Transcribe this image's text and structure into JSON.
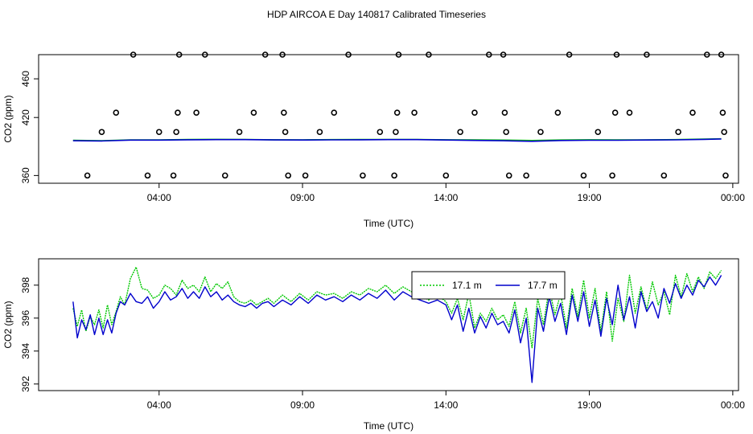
{
  "title": "HDP AIRCOA E  Day 140817  Calibrated Timeseries",
  "colors": {
    "green": "#00c800",
    "blue": "#0000cc",
    "axis": "#000000",
    "marker": "#000000"
  },
  "chart_data": [
    {
      "type": "scatter",
      "title": "",
      "xlabel": "Time (UTC)",
      "ylabel": "CO2 (ppm)",
      "x_unit": "hours UTC since 00:00 on day 140817",
      "xlim": [
        -0.2,
        24.2
      ],
      "ylim": [
        352,
        485
      ],
      "xticks": [
        4,
        9,
        14,
        19,
        24
      ],
      "xtick_labels": [
        "04:00",
        "09:00",
        "14:00",
        "19:00",
        "00:00"
      ],
      "yticks": [
        360,
        420,
        460
      ],
      "ytick_labels": [
        "360",
        "420",
        "460"
      ],
      "grid": false,
      "marker_series": {
        "name": "",
        "marker": "open-circle",
        "points": [
          [
            1.5,
            360
          ],
          [
            2.0,
            405
          ],
          [
            2.5,
            425
          ],
          [
            3.1,
            485
          ],
          [
            3.6,
            360
          ],
          [
            4.0,
            405
          ],
          [
            4.5,
            360
          ],
          [
            4.6,
            405
          ],
          [
            4.65,
            425
          ],
          [
            4.7,
            485
          ],
          [
            5.3,
            425
          ],
          [
            5.6,
            485
          ],
          [
            6.3,
            360
          ],
          [
            6.8,
            405
          ],
          [
            7.3,
            425
          ],
          [
            7.7,
            485
          ],
          [
            8.3,
            485
          ],
          [
            8.35,
            425
          ],
          [
            8.4,
            405
          ],
          [
            8.5,
            360
          ],
          [
            9.1,
            360
          ],
          [
            9.6,
            405
          ],
          [
            10.1,
            425
          ],
          [
            10.6,
            485
          ],
          [
            11.1,
            360
          ],
          [
            11.7,
            405
          ],
          [
            12.2,
            360
          ],
          [
            12.25,
            405
          ],
          [
            12.3,
            425
          ],
          [
            12.35,
            485
          ],
          [
            12.9,
            425
          ],
          [
            13.4,
            485
          ],
          [
            14.0,
            360
          ],
          [
            14.5,
            405
          ],
          [
            15.0,
            425
          ],
          [
            15.5,
            485
          ],
          [
            16.0,
            485
          ],
          [
            16.05,
            425
          ],
          [
            16.1,
            405
          ],
          [
            16.2,
            360
          ],
          [
            16.8,
            360
          ],
          [
            17.3,
            405
          ],
          [
            17.9,
            425
          ],
          [
            18.3,
            485
          ],
          [
            18.8,
            360
          ],
          [
            19.3,
            405
          ],
          [
            19.8,
            360
          ],
          [
            19.9,
            425
          ],
          [
            19.95,
            485
          ],
          [
            20.4,
            425
          ],
          [
            21.0,
            485
          ],
          [
            21.6,
            360
          ],
          [
            22.1,
            405
          ],
          [
            22.6,
            425
          ],
          [
            23.1,
            485
          ],
          [
            23.6,
            485
          ],
          [
            23.65,
            425
          ],
          [
            23.7,
            405
          ],
          [
            23.75,
            360
          ]
        ]
      },
      "series": [
        {
          "name": "17.1 m",
          "color": "#00c800",
          "x": [
            1,
            2,
            3,
            4,
            5,
            6,
            7,
            8,
            9,
            10,
            11,
            12,
            13,
            14,
            15,
            16,
            17,
            18,
            19,
            20,
            21,
            22,
            23,
            23.6
          ],
          "values": [
            396.4,
            396,
            396.9,
            396.8,
            397.2,
            397.4,
            397.3,
            397,
            396.9,
            397.1,
            397.2,
            397.3,
            397.3,
            397,
            396.8,
            396.6,
            396.2,
            396.7,
            397,
            396.8,
            396.9,
            397.1,
            397.6,
            398
          ]
        },
        {
          "name": "17.7 m",
          "color": "#0000cc",
          "x": [
            1,
            2,
            3,
            4,
            5,
            6,
            7,
            8,
            9,
            10,
            11,
            12,
            13,
            14,
            15,
            16,
            17,
            18,
            19,
            20,
            21,
            22,
            23,
            23.6
          ],
          "values": [
            396,
            395.7,
            396.6,
            396.6,
            397,
            397.1,
            397.1,
            396.8,
            396.7,
            396.9,
            397,
            397.1,
            397.1,
            396.7,
            396.3,
            396,
            395.4,
            396.2,
            396.5,
            396.5,
            396.7,
            396.9,
            397.4,
            397.8
          ]
        }
      ]
    },
    {
      "type": "line",
      "title": "",
      "xlabel": "Time (UTC)",
      "ylabel": "CO2 (ppm)",
      "x_unit": "hours UTC since 00:00 on day 140817",
      "xlim": [
        -0.2,
        24.2
      ],
      "ylim": [
        391.6,
        399.6
      ],
      "xticks": [
        4,
        9,
        14,
        19,
        24
      ],
      "xtick_labels": [
        "04:00",
        "09:00",
        "14:00",
        "19:00",
        "00:00"
      ],
      "yticks": [
        392,
        394,
        396,
        398
      ],
      "ytick_labels": [
        "392",
        "394",
        "396",
        "398"
      ],
      "grid": false,
      "legend": {
        "placement": "top-center-right"
      },
      "series": [
        {
          "name": "17.1 m",
          "color": "#00c800",
          "x": [
            1.0,
            1.15,
            1.3,
            1.45,
            1.6,
            1.75,
            1.9,
            2.05,
            2.2,
            2.35,
            2.5,
            2.65,
            2.8,
            3.0,
            3.2,
            3.4,
            3.6,
            3.8,
            4.0,
            4.2,
            4.4,
            4.6,
            4.8,
            5.0,
            5.2,
            5.4,
            5.6,
            5.8,
            6.0,
            6.2,
            6.4,
            6.6,
            6.8,
            7.0,
            7.2,
            7.4,
            7.6,
            7.8,
            8.0,
            8.3,
            8.6,
            8.9,
            9.2,
            9.5,
            9.8,
            10.1,
            10.4,
            10.7,
            11.0,
            11.3,
            11.6,
            11.9,
            12.2,
            12.5,
            12.8,
            13.1,
            13.4,
            13.7,
            14.0,
            14.2,
            14.4,
            14.6,
            14.8,
            15.0,
            15.2,
            15.4,
            15.6,
            15.8,
            16.0,
            16.2,
            16.4,
            16.6,
            16.8,
            17.0,
            17.2,
            17.4,
            17.6,
            17.8,
            18.0,
            18.2,
            18.4,
            18.6,
            18.8,
            19.0,
            19.2,
            19.4,
            19.6,
            19.8,
            20.0,
            20.2,
            20.4,
            20.6,
            20.8,
            21.0,
            21.2,
            21.4,
            21.6,
            21.8,
            22.0,
            22.2,
            22.4,
            22.6,
            22.8,
            23.0,
            23.2,
            23.4,
            23.6
          ],
          "values": [
            396.6,
            395.5,
            396.5,
            395.2,
            396.1,
            395.6,
            396.5,
            395.4,
            396.8,
            395.6,
            396.4,
            397.3,
            396.8,
            398.4,
            399.1,
            397.8,
            397.7,
            397.2,
            397.4,
            398.0,
            397.8,
            397.4,
            398.3,
            397.8,
            398.0,
            397.6,
            398.5,
            397.6,
            398.1,
            397.8,
            398.2,
            397.3,
            397.0,
            396.9,
            397.1,
            396.8,
            397.0,
            397.2,
            396.9,
            397.4,
            397.0,
            397.5,
            397.1,
            397.6,
            397.4,
            397.5,
            397.2,
            397.6,
            397.4,
            397.8,
            397.6,
            398.0,
            397.5,
            397.9,
            397.6,
            397.4,
            397.1,
            397.4,
            397.0,
            396.3,
            397.2,
            395.9,
            397.5,
            395.4,
            396.3,
            395.8,
            396.6,
            395.9,
            396.2,
            395.5,
            397.0,
            395.1,
            396.6,
            394.2,
            397.2,
            395.6,
            397.8,
            396.2,
            397.5,
            395.4,
            397.8,
            396.1,
            398.3,
            396.0,
            397.8,
            395.2,
            397.6,
            394.6,
            397.2,
            395.8,
            398.6,
            396.3,
            397.9,
            396.5,
            398.2,
            396.8,
            397.6,
            396.2,
            398.6,
            397.3,
            398.7,
            397.6,
            398.5,
            397.8,
            398.8,
            398.4,
            398.9
          ]
        },
        {
          "name": "17.7 m",
          "color": "#0000cc",
          "x": [
            1.0,
            1.15,
            1.3,
            1.45,
            1.6,
            1.75,
            1.9,
            2.05,
            2.2,
            2.35,
            2.5,
            2.65,
            2.8,
            3.0,
            3.2,
            3.4,
            3.6,
            3.8,
            4.0,
            4.2,
            4.4,
            4.6,
            4.8,
            5.0,
            5.2,
            5.4,
            5.6,
            5.8,
            6.0,
            6.2,
            6.4,
            6.6,
            6.8,
            7.0,
            7.2,
            7.4,
            7.6,
            7.8,
            8.0,
            8.3,
            8.6,
            8.9,
            9.2,
            9.5,
            9.8,
            10.1,
            10.4,
            10.7,
            11.0,
            11.3,
            11.6,
            11.9,
            12.2,
            12.5,
            12.8,
            13.1,
            13.4,
            13.7,
            14.0,
            14.2,
            14.4,
            14.6,
            14.8,
            15.0,
            15.2,
            15.4,
            15.6,
            15.8,
            16.0,
            16.2,
            16.4,
            16.6,
            16.8,
            17.0,
            17.2,
            17.4,
            17.6,
            17.8,
            18.0,
            18.2,
            18.4,
            18.6,
            18.8,
            19.0,
            19.2,
            19.4,
            19.6,
            19.8,
            20.0,
            20.2,
            20.4,
            20.6,
            20.8,
            21.0,
            21.2,
            21.4,
            21.6,
            21.8,
            22.0,
            22.2,
            22.4,
            22.6,
            22.8,
            23.0,
            23.2,
            23.4,
            23.6
          ],
          "values": [
            397.0,
            394.8,
            395.9,
            395.3,
            396.2,
            395.0,
            396.0,
            395.0,
            395.9,
            395.1,
            396.3,
            397.0,
            396.8,
            397.5,
            397.0,
            396.9,
            397.3,
            396.6,
            397.0,
            397.6,
            397.1,
            397.3,
            397.8,
            397.2,
            397.6,
            397.2,
            397.9,
            397.3,
            397.6,
            397.1,
            397.4,
            397.0,
            396.8,
            396.7,
            396.9,
            396.6,
            396.9,
            397.0,
            396.7,
            397.1,
            396.8,
            397.3,
            396.9,
            397.4,
            397.1,
            397.3,
            397.0,
            397.4,
            397.1,
            397.5,
            397.2,
            397.7,
            397.1,
            397.6,
            397.3,
            397.1,
            396.9,
            397.1,
            396.8,
            395.9,
            396.8,
            395.2,
            396.6,
            395.1,
            396.1,
            395.4,
            396.3,
            395.6,
            395.8,
            395.1,
            396.5,
            394.5,
            396.0,
            392.1,
            396.6,
            395.2,
            397.3,
            395.8,
            396.9,
            395.0,
            397.4,
            395.8,
            397.6,
            395.5,
            397.1,
            394.9,
            397.2,
            395.6,
            398.0,
            395.9,
            397.3,
            395.4,
            397.6,
            396.4,
            397.0,
            396.0,
            397.8,
            396.9,
            398.1,
            397.2,
            398.0,
            397.4,
            398.3,
            397.9,
            398.5,
            398.0,
            398.6
          ]
        }
      ]
    }
  ]
}
